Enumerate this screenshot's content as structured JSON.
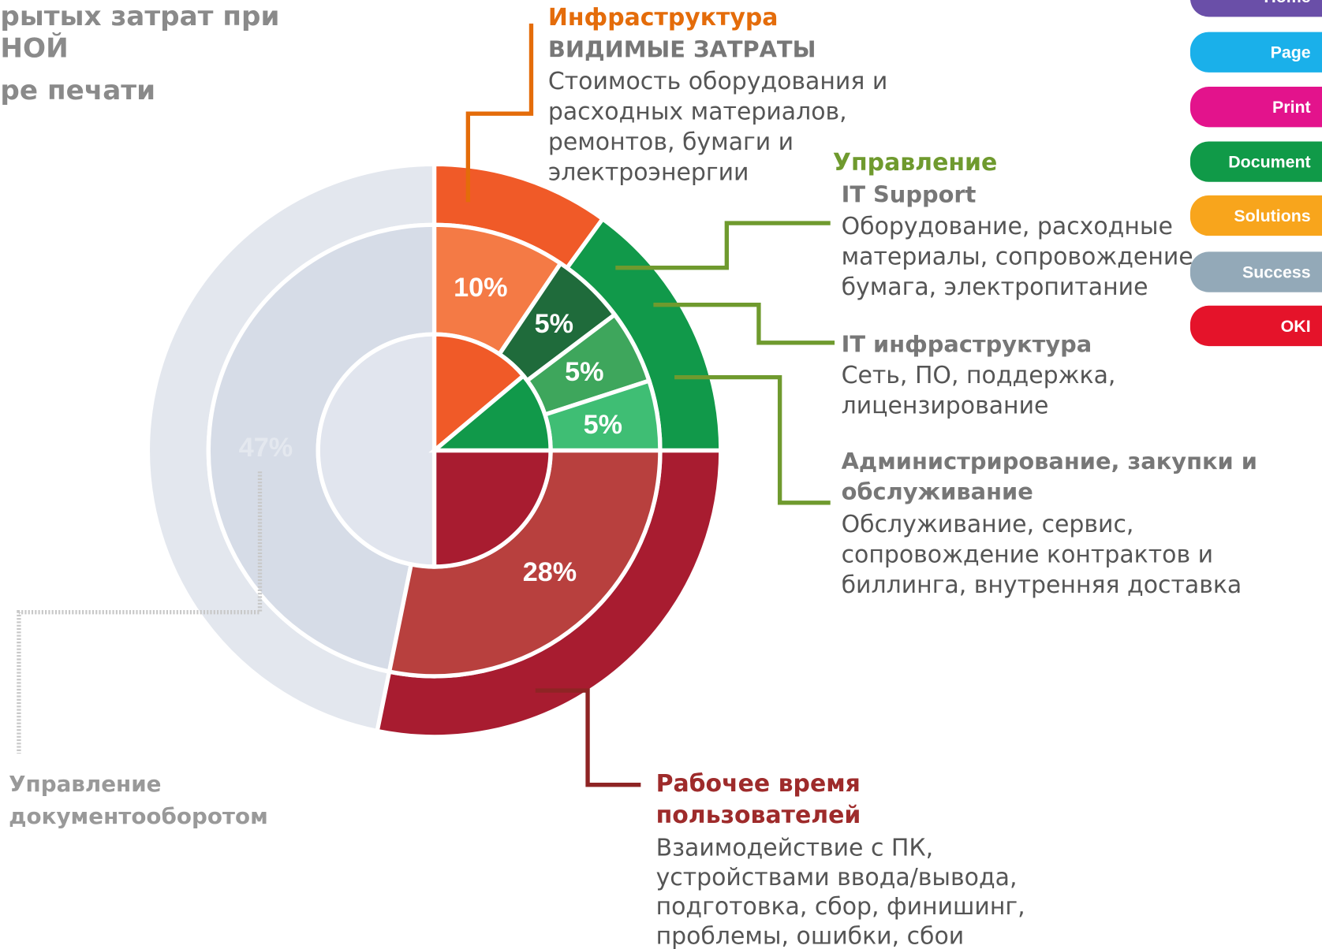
{
  "title_lines": [
    "рытых затрат при",
    "НОЙ",
    "ре печати"
  ],
  "infrastructure": {
    "heading": "Инфраструктура",
    "subheading": "ВИДИМЫЕ ЗАТРАТЫ",
    "lines": [
      "Стоимость оборудования и",
      "расходных материалов,",
      "ремонтов, бумаги и",
      "электроэнергии"
    ]
  },
  "management": {
    "heading": "Управление",
    "items": [
      {
        "heading_lines": [
          "IT Support"
        ],
        "lines": [
          "Оборудование, расходные",
          "материалы, сопровождение,",
          "бумага, электропитание"
        ]
      },
      {
        "heading_lines": [
          "IT инфраструктура"
        ],
        "lines": [
          "Сеть, ПО, поддержка,",
          "лицензирование"
        ]
      },
      {
        "heading_lines": [
          "Администрирование, закупки и",
          "обслуживание"
        ],
        "lines": [
          "Обслуживание, сервис,",
          "сопровождение контрактов и",
          "биллинга, внутренняя доставка"
        ]
      }
    ]
  },
  "user_time": {
    "heading_lines": [
      "Рабочее время",
      "пользователей"
    ],
    "lines": [
      "Взаимодействие с ПК,",
      "устройствами ввода/вывода,",
      "подготовка, сбор, финишинг,",
      "проблемы, ошибки, сбои"
    ]
  },
  "document_management": {
    "lines": [
      "Управление",
      "документооборотом"
    ]
  },
  "percent_labels": [
    "10%",
    "5%",
    "5%",
    "5%",
    "28%",
    "47%"
  ],
  "nav": [
    "Home",
    "Page",
    "Print",
    "Document",
    "Solutions",
    "Success",
    "OKI"
  ]
}
